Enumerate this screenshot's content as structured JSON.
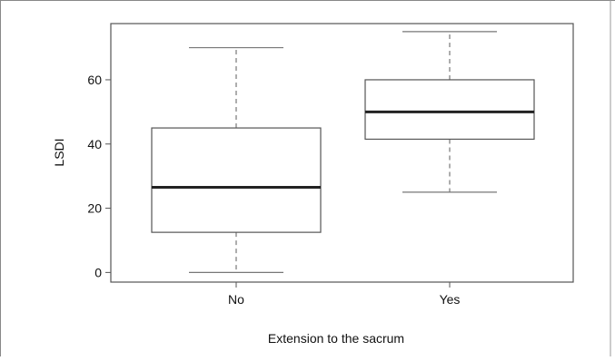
{
  "chart_data": {
    "type": "boxplot",
    "title": "",
    "xlabel": "Extension to the sacrum",
    "ylabel": "LSDI",
    "ylim": [
      -3,
      77.5
    ],
    "yticks": [
      0,
      20,
      40,
      60
    ],
    "categories": [
      "No",
      "Yes"
    ],
    "boxes": [
      {
        "category": "No",
        "whisker_low": 0,
        "q1": 12.5,
        "median": 26.5,
        "q3": 45,
        "whisker_high": 70
      },
      {
        "category": "Yes",
        "whisker_low": 25,
        "q1": 41.5,
        "median": 50,
        "q3": 60,
        "whisker_high": 75
      }
    ],
    "grid": false,
    "colors": {
      "box": "#555555",
      "median": "#222222",
      "whisker": "#777777",
      "frame": "#555555"
    }
  }
}
